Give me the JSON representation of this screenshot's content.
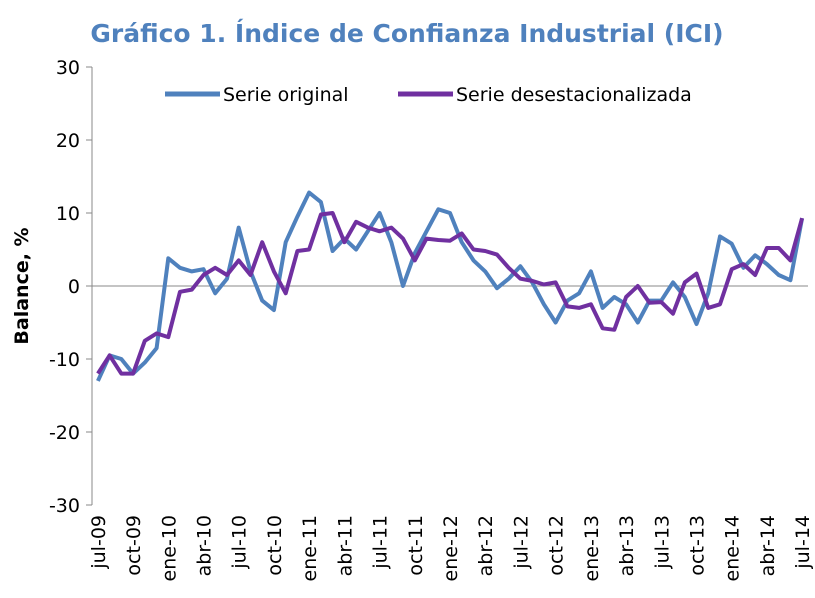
{
  "chart_data": {
    "type": "line",
    "title": "Gráfico 1. Índice de Confianza Industrial (ICI)",
    "y_label": "Balance, %",
    "categories": [
      "jul-09",
      null,
      null,
      "oct-09",
      null,
      null,
      "ene-10",
      null,
      null,
      "abr-10",
      null,
      null,
      "jul-10",
      null,
      null,
      "oct-10",
      null,
      null,
      "ene-11",
      null,
      null,
      "abr-11",
      null,
      null,
      "jul-11",
      null,
      null,
      "oct-11",
      null,
      null,
      "ene-12",
      null,
      null,
      "abr-12",
      null,
      null,
      "jul-12",
      null,
      null,
      "oct-12",
      null,
      null,
      "ene-13",
      null,
      null,
      "abr-13",
      null,
      null,
      "jul-13",
      null,
      null,
      "oct-13",
      null,
      null,
      "ene-14",
      null,
      null,
      "abr-14",
      null,
      null,
      "jul-14"
    ],
    "series": [
      {
        "name": "Serie original",
        "color": "#4f81bd",
        "values": [
          -13,
          -9.5,
          -10,
          -12,
          -10.5,
          -8.5,
          3.8,
          2.5,
          2,
          2.3,
          -1,
          1,
          8,
          2,
          -2,
          -3.3,
          6,
          9.5,
          12.8,
          11.5,
          4.8,
          6.5,
          5,
          7.5,
          10,
          6,
          0,
          4.5,
          7.5,
          10.5,
          10,
          6,
          3.5,
          2,
          -0.3,
          1,
          2.7,
          0.5,
          -2.5,
          -5,
          -2,
          -1,
          2,
          -3,
          -1.5,
          -2.5,
          -5,
          -2,
          -2,
          0.5,
          -1.5,
          -5.2,
          -1,
          6.8,
          5.8,
          2.5,
          4.2,
          3,
          1.5,
          0.8,
          9.3
        ]
      },
      {
        "name": "Serie desestacionalizada",
        "color": "#7030a0",
        "values": [
          -12,
          -9.5,
          -12,
          -12,
          -7.5,
          -6.5,
          -7,
          -0.8,
          -0.5,
          1.5,
          2.5,
          1.5,
          3.5,
          1.5,
          6,
          2,
          -1,
          4.8,
          5,
          9.8,
          10,
          6,
          8.8,
          8,
          7.5,
          8,
          6.5,
          3.5,
          6.5,
          6.3,
          6.2,
          7.2,
          5,
          4.8,
          4.3,
          2.5,
          1,
          0.7,
          0.2,
          0.5,
          -2.8,
          -3,
          -2.5,
          -5.8,
          -6,
          -1.5,
          0,
          -2.3,
          -2.2,
          -3.8,
          0.5,
          1.7,
          -3,
          -2.5,
          2.3,
          3,
          1.5,
          5.2,
          5.2,
          3.5,
          9.3
        ]
      }
    ],
    "ylim": [
      -30,
      30
    ],
    "yticks": [
      -30,
      -20,
      -10,
      0,
      10,
      20,
      30
    ],
    "legend": "top"
  }
}
